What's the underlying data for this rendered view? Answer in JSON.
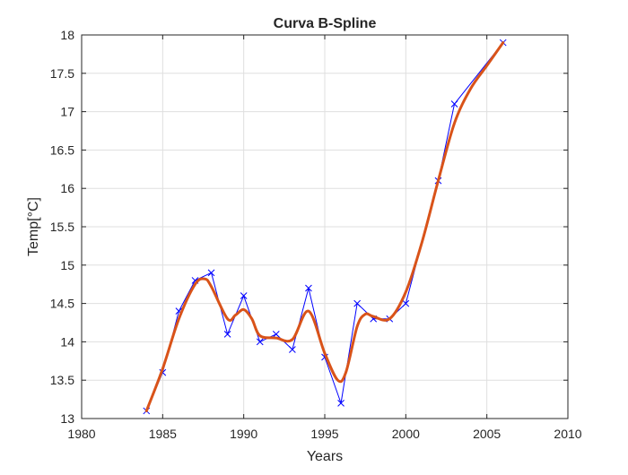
{
  "chart_data": {
    "type": "line",
    "title": "Curva B-Spline",
    "xlabel": "Years",
    "ylabel": "Temp[°C]",
    "xlim": [
      1980,
      2010
    ],
    "ylim": [
      13,
      18
    ],
    "xticks": [
      1980,
      1985,
      1990,
      1995,
      2000,
      2005,
      2010
    ],
    "yticks": [
      13,
      13.5,
      14,
      14.5,
      15,
      15.5,
      16,
      16.5,
      17,
      17.5,
      18
    ],
    "grid": true,
    "legend": "none",
    "series": [
      {
        "style": "line-with-x-markers",
        "color": "#0000ff",
        "x": [
          1984,
          1985,
          1986,
          1987,
          1988,
          1989,
          1990,
          1991,
          1992,
          1993,
          1994,
          1995,
          1996,
          1997,
          1998,
          1999,
          2000,
          2002,
          2003,
          2006
        ],
        "y": [
          13.1,
          13.6,
          14.4,
          14.8,
          14.9,
          14.1,
          14.6,
          14.0,
          14.1,
          13.9,
          14.7,
          13.8,
          13.2,
          14.5,
          14.3,
          14.3,
          14.5,
          16.1,
          17.1,
          17.9
        ]
      },
      {
        "style": "smooth-curve",
        "color": "#d95319",
        "x": [
          1984,
          1985,
          1986,
          1987,
          1987.6,
          1988,
          1989,
          1989.5,
          1990,
          1990.5,
          1991,
          1992,
          1993,
          1994,
          1995,
          1995.8,
          1996.3,
          1997,
          1997.5,
          1998,
          1999,
          2000,
          2001,
          2002,
          2003,
          2004,
          2005,
          2006
        ],
        "y": [
          13.1,
          13.65,
          14.3,
          14.75,
          14.82,
          14.72,
          14.3,
          14.35,
          14.42,
          14.3,
          14.08,
          14.05,
          14.03,
          14.4,
          13.85,
          13.5,
          13.6,
          14.2,
          14.36,
          14.33,
          14.3,
          14.65,
          15.3,
          16.1,
          16.85,
          17.3,
          17.6,
          17.9
        ]
      }
    ]
  }
}
